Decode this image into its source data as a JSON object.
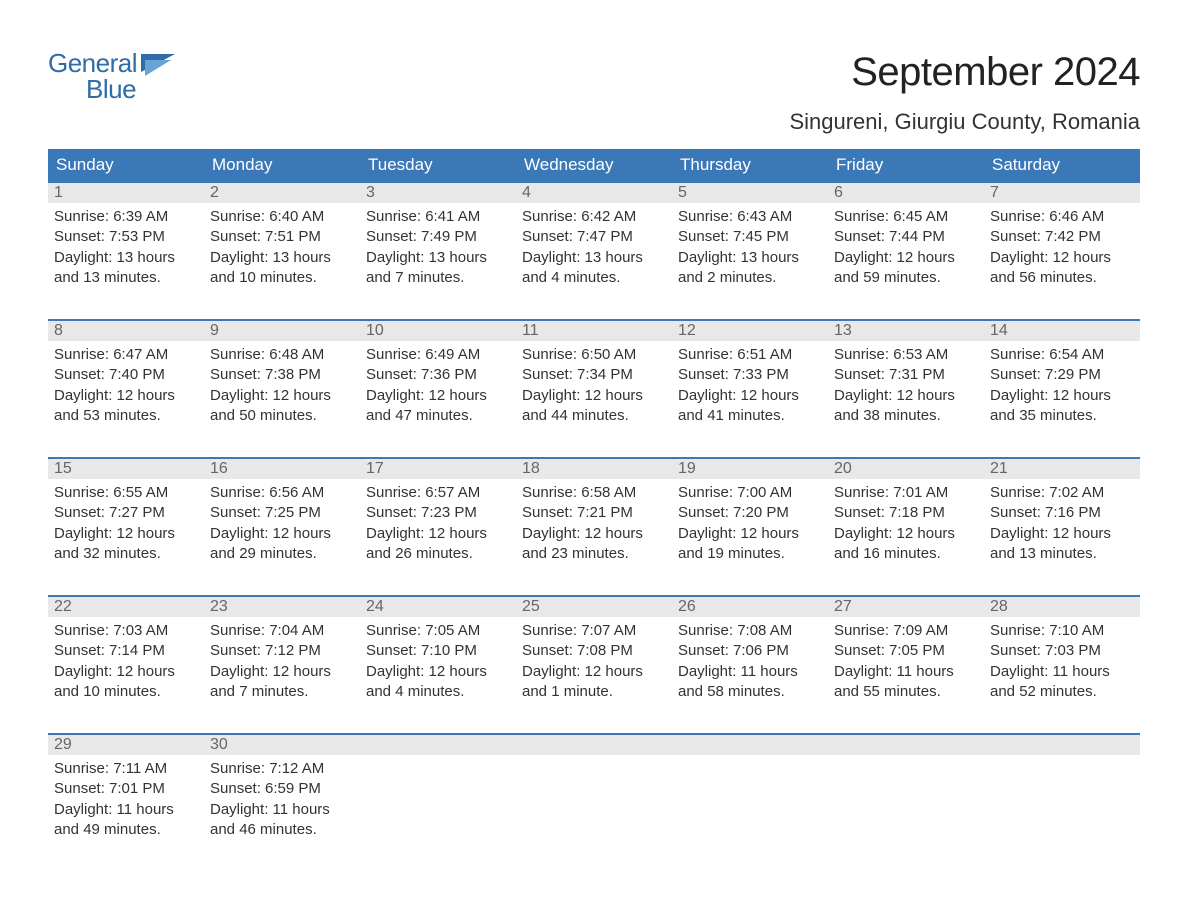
{
  "brand": {
    "word1": "General",
    "word2": "Blue",
    "color": "#2f6ca8"
  },
  "title": "September 2024",
  "location": "Singureni, Giurgiu County, Romania",
  "colors": {
    "header_bg": "#3b78b8",
    "header_text": "#ffffff",
    "daynum_bg": "#e8e8e8",
    "daynum_text": "#666666",
    "body_text": "#333333",
    "rule": "#3b78b8",
    "page_bg": "#ffffff"
  },
  "fonts": {
    "title_size_pt": 30,
    "location_size_pt": 17,
    "weekday_size_pt": 13,
    "body_size_pt": 11
  },
  "weekdays": [
    "Sunday",
    "Monday",
    "Tuesday",
    "Wednesday",
    "Thursday",
    "Friday",
    "Saturday"
  ],
  "weeks": [
    [
      {
        "day": "1",
        "sunrise": "Sunrise: 6:39 AM",
        "sunset": "Sunset: 7:53 PM",
        "daylight": "Daylight: 13 hours and 13 minutes."
      },
      {
        "day": "2",
        "sunrise": "Sunrise: 6:40 AM",
        "sunset": "Sunset: 7:51 PM",
        "daylight": "Daylight: 13 hours and 10 minutes."
      },
      {
        "day": "3",
        "sunrise": "Sunrise: 6:41 AM",
        "sunset": "Sunset: 7:49 PM",
        "daylight": "Daylight: 13 hours and 7 minutes."
      },
      {
        "day": "4",
        "sunrise": "Sunrise: 6:42 AM",
        "sunset": "Sunset: 7:47 PM",
        "daylight": "Daylight: 13 hours and 4 minutes."
      },
      {
        "day": "5",
        "sunrise": "Sunrise: 6:43 AM",
        "sunset": "Sunset: 7:45 PM",
        "daylight": "Daylight: 13 hours and 2 minutes."
      },
      {
        "day": "6",
        "sunrise": "Sunrise: 6:45 AM",
        "sunset": "Sunset: 7:44 PM",
        "daylight": "Daylight: 12 hours and 59 minutes."
      },
      {
        "day": "7",
        "sunrise": "Sunrise: 6:46 AM",
        "sunset": "Sunset: 7:42 PM",
        "daylight": "Daylight: 12 hours and 56 minutes."
      }
    ],
    [
      {
        "day": "8",
        "sunrise": "Sunrise: 6:47 AM",
        "sunset": "Sunset: 7:40 PM",
        "daylight": "Daylight: 12 hours and 53 minutes."
      },
      {
        "day": "9",
        "sunrise": "Sunrise: 6:48 AM",
        "sunset": "Sunset: 7:38 PM",
        "daylight": "Daylight: 12 hours and 50 minutes."
      },
      {
        "day": "10",
        "sunrise": "Sunrise: 6:49 AM",
        "sunset": "Sunset: 7:36 PM",
        "daylight": "Daylight: 12 hours and 47 minutes."
      },
      {
        "day": "11",
        "sunrise": "Sunrise: 6:50 AM",
        "sunset": "Sunset: 7:34 PM",
        "daylight": "Daylight: 12 hours and 44 minutes."
      },
      {
        "day": "12",
        "sunrise": "Sunrise: 6:51 AM",
        "sunset": "Sunset: 7:33 PM",
        "daylight": "Daylight: 12 hours and 41 minutes."
      },
      {
        "day": "13",
        "sunrise": "Sunrise: 6:53 AM",
        "sunset": "Sunset: 7:31 PM",
        "daylight": "Daylight: 12 hours and 38 minutes."
      },
      {
        "day": "14",
        "sunrise": "Sunrise: 6:54 AM",
        "sunset": "Sunset: 7:29 PM",
        "daylight": "Daylight: 12 hours and 35 minutes."
      }
    ],
    [
      {
        "day": "15",
        "sunrise": "Sunrise: 6:55 AM",
        "sunset": "Sunset: 7:27 PM",
        "daylight": "Daylight: 12 hours and 32 minutes."
      },
      {
        "day": "16",
        "sunrise": "Sunrise: 6:56 AM",
        "sunset": "Sunset: 7:25 PM",
        "daylight": "Daylight: 12 hours and 29 minutes."
      },
      {
        "day": "17",
        "sunrise": "Sunrise: 6:57 AM",
        "sunset": "Sunset: 7:23 PM",
        "daylight": "Daylight: 12 hours and 26 minutes."
      },
      {
        "day": "18",
        "sunrise": "Sunrise: 6:58 AM",
        "sunset": "Sunset: 7:21 PM",
        "daylight": "Daylight: 12 hours and 23 minutes."
      },
      {
        "day": "19",
        "sunrise": "Sunrise: 7:00 AM",
        "sunset": "Sunset: 7:20 PM",
        "daylight": "Daylight: 12 hours and 19 minutes."
      },
      {
        "day": "20",
        "sunrise": "Sunrise: 7:01 AM",
        "sunset": "Sunset: 7:18 PM",
        "daylight": "Daylight: 12 hours and 16 minutes."
      },
      {
        "day": "21",
        "sunrise": "Sunrise: 7:02 AM",
        "sunset": "Sunset: 7:16 PM",
        "daylight": "Daylight: 12 hours and 13 minutes."
      }
    ],
    [
      {
        "day": "22",
        "sunrise": "Sunrise: 7:03 AM",
        "sunset": "Sunset: 7:14 PM",
        "daylight": "Daylight: 12 hours and 10 minutes."
      },
      {
        "day": "23",
        "sunrise": "Sunrise: 7:04 AM",
        "sunset": "Sunset: 7:12 PM",
        "daylight": "Daylight: 12 hours and 7 minutes."
      },
      {
        "day": "24",
        "sunrise": "Sunrise: 7:05 AM",
        "sunset": "Sunset: 7:10 PM",
        "daylight": "Daylight: 12 hours and 4 minutes."
      },
      {
        "day": "25",
        "sunrise": "Sunrise: 7:07 AM",
        "sunset": "Sunset: 7:08 PM",
        "daylight": "Daylight: 12 hours and 1 minute."
      },
      {
        "day": "26",
        "sunrise": "Sunrise: 7:08 AM",
        "sunset": "Sunset: 7:06 PM",
        "daylight": "Daylight: 11 hours and 58 minutes."
      },
      {
        "day": "27",
        "sunrise": "Sunrise: 7:09 AM",
        "sunset": "Sunset: 7:05 PM",
        "daylight": "Daylight: 11 hours and 55 minutes."
      },
      {
        "day": "28",
        "sunrise": "Sunrise: 7:10 AM",
        "sunset": "Sunset: 7:03 PM",
        "daylight": "Daylight: 11 hours and 52 minutes."
      }
    ],
    [
      {
        "day": "29",
        "sunrise": "Sunrise: 7:11 AM",
        "sunset": "Sunset: 7:01 PM",
        "daylight": "Daylight: 11 hours and 49 minutes."
      },
      {
        "day": "30",
        "sunrise": "Sunrise: 7:12 AM",
        "sunset": "Sunset: 6:59 PM",
        "daylight": "Daylight: 11 hours and 46 minutes."
      },
      null,
      null,
      null,
      null,
      null
    ]
  ]
}
